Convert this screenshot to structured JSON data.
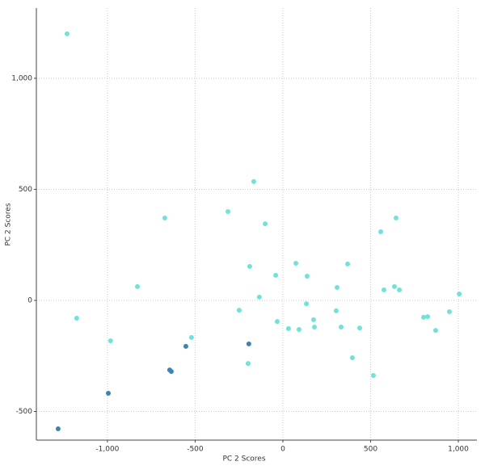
{
  "chart_data": {
    "type": "scatter",
    "x_label": "PC 2 Scores",
    "y_label": "PC 2 Scores",
    "xlim": [
      -1405,
      1106
    ],
    "ylim": [
      -629,
      1316
    ],
    "xticks": [
      {
        "value": -1000,
        "label": "-1,000"
      },
      -500,
      0,
      500,
      {
        "value": 1000,
        "label": "1,000"
      }
    ],
    "yticks": [
      -500,
      0,
      500,
      {
        "value": 1000,
        "label": "1,000"
      }
    ],
    "grid": true,
    "series": [
      {
        "color": "#6fe3d9",
        "x": [
          -1230,
          -1175,
          -982,
          -829,
          -673,
          -521,
          -313,
          -166,
          -101,
          -189,
          -249,
          -134,
          -198,
          -41,
          -32,
          32,
          74,
          92,
          138,
          134,
          175,
          180,
          309,
          304,
          332,
          369,
          396,
          438,
          516,
          558,
          576,
          645,
          636,
          664,
          802,
          825,
          871,
          949,
          1005
        ],
        "values": [
          1200,
          -80,
          -182,
          62,
          371,
          -167,
          400,
          535,
          345,
          153,
          -44,
          15,
          -284,
          113,
          -95,
          -127,
          167,
          -131,
          109,
          -15,
          -87,
          -120,
          58,
          -47,
          -120,
          164,
          -258,
          -124,
          -338,
          309,
          47,
          371,
          62,
          47,
          -76,
          -73,
          -135,
          -51,
          29
        ]
      },
      {
        "color": "#3a84b0",
        "x": [
          -1281,
          -995,
          -645,
          -636,
          -553,
          -194
        ],
        "values": [
          -578,
          -418,
          -313,
          -320,
          -207,
          -196
        ]
      }
    ]
  }
}
